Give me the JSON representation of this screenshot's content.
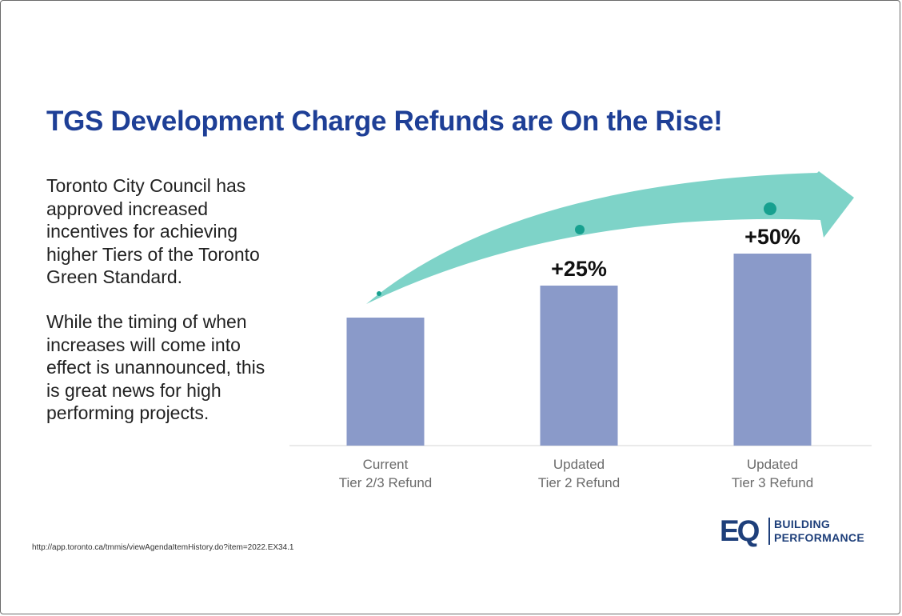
{
  "slide": {
    "title": "TGS Development Charge Refunds are On the Rise!",
    "paragraph1": "Toronto City Council has approved increased incentives for achieving higher Tiers of the Toronto Green Standard.",
    "paragraph2": "While the timing of when increases will come into effect is unannounced, this is great news for high performing projects.",
    "source": "http://app.toronto.ca/tmmis/viewAgendaItemHistory.do?item=2022.EX34.1"
  },
  "logo": {
    "mark": "EQ",
    "line1": "BUILDING",
    "line2": "PERFORMANCE"
  },
  "colors": {
    "title": "#1e3f96",
    "bar": "#8a9ac9",
    "arrow": "#7ed3c8",
    "dot": "#17a08f",
    "logo": "#1e3f7a"
  },
  "chart_data": {
    "type": "bar",
    "categories": [
      [
        "Current",
        "Tier 2/3 Refund"
      ],
      [
        "Updated",
        "Tier 2 Refund"
      ],
      [
        "Updated",
        "Tier 3 Refund"
      ]
    ],
    "values": [
      100,
      125,
      150
    ],
    "data_labels": [
      "",
      "+25%",
      "+50%"
    ],
    "ylim": [
      0,
      150
    ],
    "grid": false,
    "decoration": "upward arrow over bars"
  }
}
